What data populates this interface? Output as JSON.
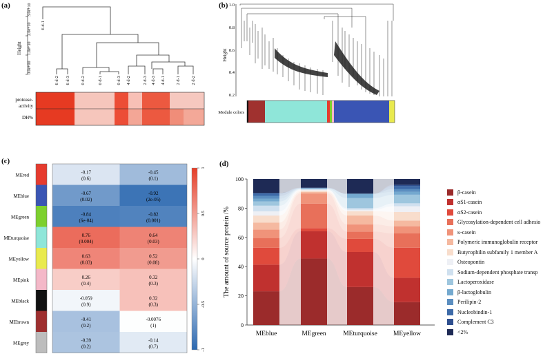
{
  "panel_a": {
    "label": "(a)",
    "ylabel": "Height",
    "yticks": [
      "0.0e+00",
      "1.0e+10",
      "2.0e+10",
      "3.0e+10"
    ],
    "leaves": [
      "6 d-2",
      "6 d-3",
      "0 d-2",
      "0 d-1",
      "0 d-3",
      "4 d-2",
      "2 d-3",
      "4 d-3",
      "4 d-1",
      "2 d-1",
      "2 d-2"
    ],
    "outlier": "6 d-1",
    "traits": [
      "protease-\nactivity",
      "DH%"
    ],
    "trait_label_1": "protease-",
    "trait_label_2": "activity",
    "trait_label_3": "DH%"
  },
  "panel_b": {
    "label": "(b)",
    "ylabel": "Height",
    "yticks": [
      "1.0",
      "0.8",
      "0.6",
      "0.4",
      "0.2"
    ],
    "module_label": "Module colors"
  },
  "panel_c": {
    "label": "(c)",
    "modules": [
      "MEred",
      "MEblue",
      "MEgreen",
      "MEturquoise",
      "MEyellow",
      "MEpink",
      "MEblack",
      "MEbrown",
      "MEgrey"
    ],
    "module_colors": [
      "#e63b2e",
      "#3a55b4",
      "#7dd02e",
      "#8fe6d9",
      "#e9ea4e",
      "#f4b8c8",
      "#111111",
      "#9e2f2f",
      "#bdbdbd"
    ],
    "columns": [
      "protease activity",
      "DH%"
    ],
    "values": [
      [
        [
          "-0.17",
          "(0.6)"
        ],
        [
          "-0.45",
          "(0.1)"
        ]
      ],
      [
        [
          "-0.67",
          "(0.02)"
        ],
        [
          "-0.92",
          "(2e-05)"
        ]
      ],
      [
        [
          "-0.84",
          "(6e-04)"
        ],
        [
          "-0.82",
          "(0.001)"
        ]
      ],
      [
        [
          "0.76",
          "(0.004)"
        ],
        [
          "0.64",
          "(0.03)"
        ]
      ],
      [
        [
          "0.63",
          "(0.03)"
        ],
        [
          "0.52",
          "(0.08)"
        ]
      ],
      [
        [
          "0.26",
          "(0.4)"
        ],
        [
          "0.32",
          "(0.3)"
        ]
      ],
      [
        [
          "-0.059",
          "(0.9)"
        ],
        [
          "0.32",
          "(0.3)"
        ]
      ],
      [
        [
          "-0.41",
          "(0.2)"
        ],
        [
          "-0.0076",
          "(1)"
        ]
      ],
      [
        [
          "-0.39",
          "(0.2)"
        ],
        [
          "-0.14",
          "(0.7)"
        ]
      ]
    ],
    "scale_ticks": [
      "1",
      "0.5",
      "0",
      "-0.5",
      "-1"
    ]
  },
  "chart_data": {
    "type": "bar",
    "title": "(d)",
    "ylabel": "The amount of source protein /%",
    "xlabel": "",
    "ylim": [
      0,
      100
    ],
    "yticks": [
      "0",
      "20",
      "40",
      "60",
      "80",
      "100"
    ],
    "categories": [
      "MEblue",
      "MEgreen",
      "MEturquoise",
      "MEyellow"
    ],
    "series": [
      {
        "name": "β-casein",
        "color": "#9b2b2b",
        "values": [
          24,
          46,
          26,
          16
        ]
      },
      {
        "name": "αS1-casein",
        "color": "#c0312f",
        "values": [
          19,
          19,
          24,
          17
        ]
      },
      {
        "name": "αS2-casein",
        "color": "#e04a3c",
        "values": [
          12,
          2,
          9,
          21
        ]
      },
      {
        "name": "Glycosylation-dependent cell adhesio",
        "color": "#e8705a",
        "values": [
          7,
          17,
          5,
          10
        ]
      },
      {
        "name": "κ-casein",
        "color": "#f0937a",
        "values": [
          6,
          7,
          5,
          5
        ]
      },
      {
        "name": "Polymeric immunoglobulin receptor",
        "color": "#f5b9a0",
        "values": [
          5,
          1,
          6,
          4
        ]
      },
      {
        "name": "Butyrophilin subfamily 1 member A",
        "color": "#f8ddcc",
        "values": [
          5,
          1,
          3,
          6
        ]
      },
      {
        "name": "Osteopontin",
        "color": "#eef0f5",
        "values": [
          3,
          0.5,
          1,
          4
        ]
      },
      {
        "name": "Sodium-dependent phosphate transp",
        "color": "#cfe0ef",
        "values": [
          4,
          0.5,
          1,
          2
        ]
      },
      {
        "name": "Lactoperoxidase",
        "color": "#9ec6de",
        "values": [
          3,
          0.3,
          7,
          6
        ]
      },
      {
        "name": "β-lactoglobulin",
        "color": "#74a9cf",
        "values": [
          2,
          0.2,
          3,
          2
        ]
      },
      {
        "name": "Perilipin-2",
        "color": "#5b8ec0",
        "values": [
          2,
          0.2,
          0,
          2
        ]
      },
      {
        "name": "Nucleobindin-1",
        "color": "#3d6aa8",
        "values": [
          2,
          0.2,
          0,
          2
        ]
      },
      {
        "name": "Complement C3",
        "color": "#2f4f8f",
        "values": [
          0,
          0.1,
          0,
          1
        ]
      },
      {
        "name": "<2%",
        "color": "#1e2a55",
        "values": [
          10,
          6,
          10,
          4
        ]
      }
    ]
  }
}
